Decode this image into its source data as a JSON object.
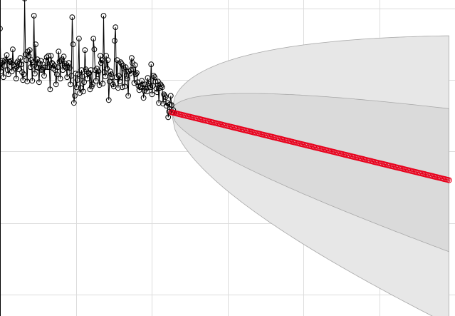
{
  "chart_data": {
    "type": "line",
    "title": "",
    "xlabel": "",
    "ylabel": "",
    "grid": true,
    "xlim": [
      -2.0,
      4.0
    ],
    "ylim": [
      -3.3,
      1.12
    ],
    "observed_start": -2.0,
    "observed_step": 0.0112,
    "observed_values": [
      0.72,
      0.12,
      0.24,
      0.27,
      0.04,
      0.2,
      0.28,
      0.26,
      0.35,
      0.14,
      0.08,
      0.26,
      0.25,
      0.27,
      0.12,
      0.43,
      0.21,
      0.19,
      0.16,
      0.02,
      0.24,
      0.26,
      0.15,
      0.23,
      0.31,
      0.22,
      0.11,
      0.0,
      0.08,
      1.14,
      0.36,
      0.28,
      -0.02,
      0.4,
      0.34,
      0.42,
      0.18,
      0.28,
      -0.01,
      0.25,
      0.9,
      0.09,
      0.5,
      0.18,
      0.29,
      0.17,
      -0.03,
      0.23,
      0.27,
      0.14,
      0.15,
      0.17,
      0.06,
      0.18,
      0.27,
      0.32,
      0.18,
      0.34,
      0.18,
      -0.13,
      0.34,
      0.24,
      0.23,
      0.16,
      0.2,
      0.14,
      -0.06,
      0.08,
      0.18,
      0.4,
      0.26,
      0.02,
      0.27,
      0.29,
      0.14,
      0.33,
      0.2,
      0.23,
      0.17,
      0.04,
      0.18,
      0.24,
      0.17,
      -0.06,
      0.06,
      0.88,
      0.5,
      -0.32,
      -0.22,
      0.09,
      -0.1,
      0.0,
      0.08,
      0.58,
      -0.18,
      -0.11,
      0.14,
      0.05,
      -0.16,
      -0.03,
      0.42,
      0.15,
      0.12,
      0.02,
      0.1,
      0.09,
      -0.13,
      0.14,
      -0.09,
      -0.06,
      0.58,
      0.43,
      0.14,
      -0.01,
      0.16,
      0.08,
      0.12,
      -0.07,
      0.34,
      0.24,
      0.28,
      -0.05,
      0.9,
      0.11,
      0.05,
      0.34,
      0.16,
      0.28,
      -0.28,
      -0.02,
      0.12,
      0.08,
      0.04,
      -0.06,
      -0.09,
      0.55,
      0.74,
      0.04,
      0.28,
      -0.11,
      0.06,
      -0.02,
      0.25,
      0.23,
      -0.1,
      0.2,
      0.16,
      -0.09,
      0.18,
      0.06,
      0.02,
      -0.22,
      0.12,
      0.09,
      0.14,
      0.31,
      0.24,
      0.15,
      -0.04,
      0.21,
      0.08,
      0.1,
      -0.03,
      -0.08,
      -0.14,
      -0.1,
      -0.08,
      -0.01,
      -0.06,
      -0.25,
      -0.15,
      -0.06,
      -0.12,
      -0.16,
      0.03,
      -0.05,
      -0.08,
      -0.1,
      0.22,
      -0.2,
      -0.08,
      0.06,
      0.04,
      -0.02,
      -0.12,
      -0.17,
      -0.02,
      -0.32,
      -0.11,
      -0.06,
      -0.08,
      -0.1,
      -0.33,
      -0.2,
      -0.22,
      -0.24,
      -0.36,
      -0.32,
      -0.52,
      -0.44,
      -0.34,
      -0.22,
      -0.35,
      -0.45,
      -0.42,
      -0.46
    ],
    "forecast_start": 0.26,
    "forecast_step": 0.02,
    "forecast_values_first": -0.45,
    "forecast_values_last": -1.4,
    "band_inner_upper_end": -0.4,
    "band_inner_lower_end": -2.4,
    "band_outer_upper_end": 0.62,
    "band_outer_lower_end": -3.42,
    "colors": {
      "observed": "#000000",
      "forecast": "#e8001c",
      "band_outer": "#e7e7e7",
      "band_inner": "#d5d5d5",
      "band_edge": "#a8a8a8",
      "grid": "#dcdcdc",
      "background": "#ffffff"
    }
  }
}
